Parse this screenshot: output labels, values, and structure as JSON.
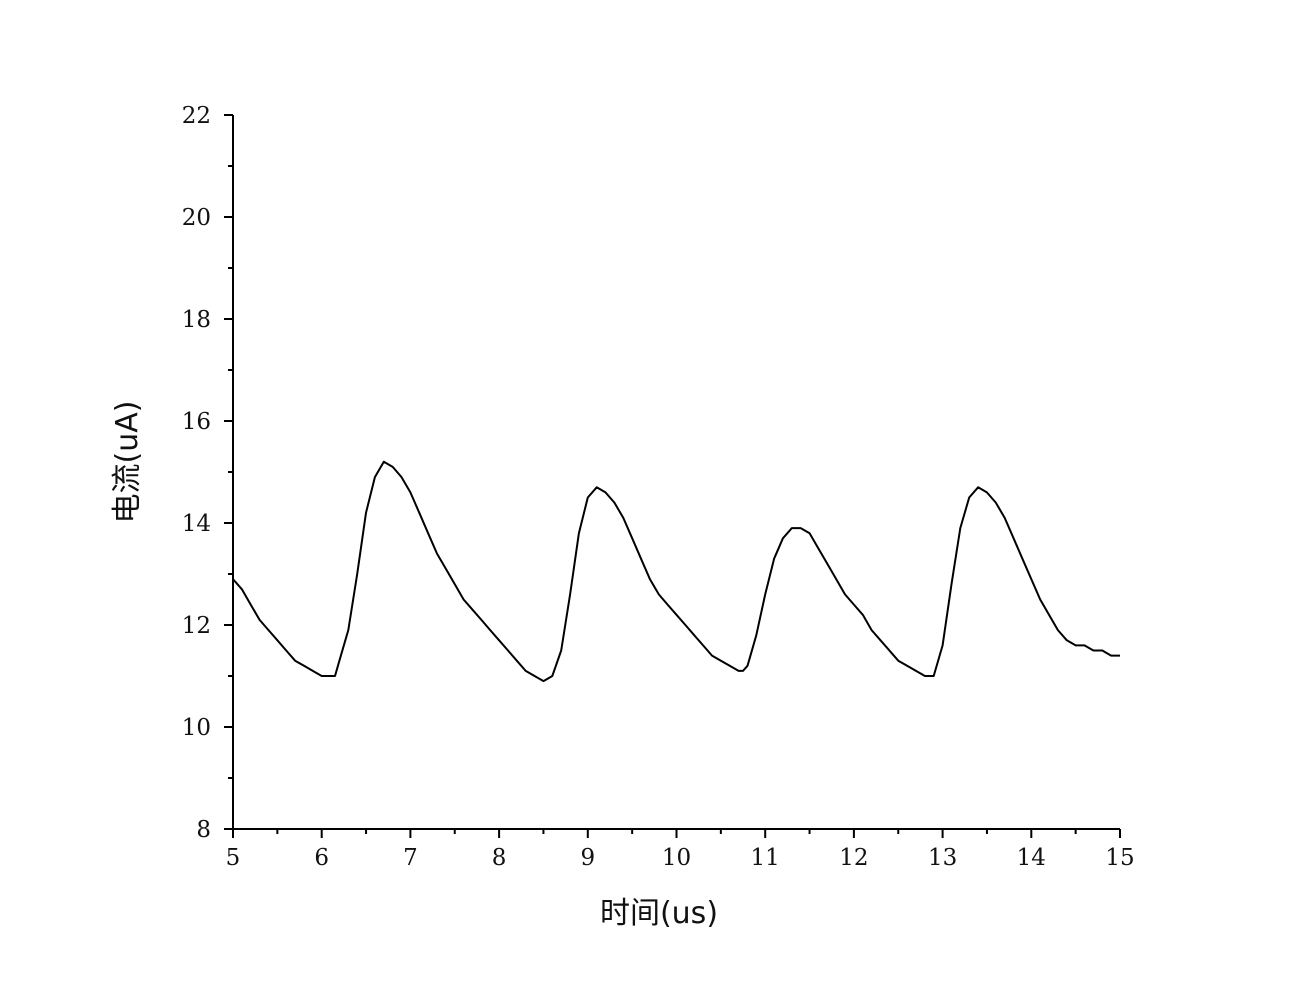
{
  "chart_data": {
    "type": "line",
    "xlabel": "时间(us)",
    "ylabel": "电流(uA)",
    "xlim": [
      5,
      15
    ],
    "ylim": [
      8,
      22
    ],
    "x_ticks": [
      5,
      6,
      7,
      8,
      9,
      10,
      11,
      12,
      13,
      14,
      15
    ],
    "x_tick_labels": [
      "5",
      "6",
      "7",
      "8",
      "9",
      "10",
      "11",
      "12",
      "13",
      "14",
      "15"
    ],
    "y_ticks": [
      8,
      10,
      12,
      14,
      16,
      18,
      20,
      22
    ],
    "y_tick_labels": [
      "8",
      "10",
      "12",
      "14",
      "16",
      "18",
      "20",
      "22"
    ],
    "grid": false,
    "line_color": "#000000",
    "series": [
      {
        "x": [
          5.0,
          5.1,
          5.2,
          5.3,
          5.4,
          5.5,
          5.6,
          5.7,
          5.8,
          5.9,
          6.0,
          6.1,
          6.15,
          6.2,
          6.3,
          6.4,
          6.5,
          6.6,
          6.7,
          6.8,
          6.9,
          7.0,
          7.1,
          7.2,
          7.3,
          7.4,
          7.5,
          7.6,
          7.7,
          7.8,
          7.9,
          8.0,
          8.1,
          8.2,
          8.3,
          8.4,
          8.5,
          8.6,
          8.7,
          8.8,
          8.9,
          9.0,
          9.1,
          9.2,
          9.3,
          9.4,
          9.5,
          9.6,
          9.7,
          9.8,
          9.9,
          10.0,
          10.1,
          10.2,
          10.3,
          10.4,
          10.5,
          10.6,
          10.7,
          10.75,
          10.8,
          10.9,
          11.0,
          11.1,
          11.2,
          11.3,
          11.4,
          11.5,
          11.6,
          11.7,
          11.8,
          11.9,
          12.0,
          12.1,
          12.2,
          12.3,
          12.4,
          12.5,
          12.6,
          12.7,
          12.8,
          12.9,
          13.0,
          13.1,
          13.2,
          13.3,
          13.4,
          13.5,
          13.6,
          13.7,
          13.8,
          13.9,
          14.0,
          14.1,
          14.2,
          14.3,
          14.4,
          14.5,
          14.6,
          14.7,
          14.8,
          14.9,
          15.0
        ],
        "values": [
          12.9,
          12.7,
          12.4,
          12.1,
          11.9,
          11.7,
          11.5,
          11.3,
          11.2,
          11.1,
          11.0,
          11.0,
          11.0,
          11.3,
          11.9,
          13.0,
          14.2,
          14.9,
          15.2,
          15.1,
          14.9,
          14.6,
          14.2,
          13.8,
          13.4,
          13.1,
          12.8,
          12.5,
          12.3,
          12.1,
          11.9,
          11.7,
          11.5,
          11.3,
          11.1,
          11.0,
          10.9,
          11.0,
          11.5,
          12.6,
          13.8,
          14.5,
          14.7,
          14.6,
          14.4,
          14.1,
          13.7,
          13.3,
          12.9,
          12.6,
          12.4,
          12.2,
          12.0,
          11.8,
          11.6,
          11.4,
          11.3,
          11.2,
          11.1,
          11.1,
          11.2,
          11.8,
          12.6,
          13.3,
          13.7,
          13.9,
          13.9,
          13.8,
          13.5,
          13.2,
          12.9,
          12.6,
          12.4,
          12.2,
          11.9,
          11.7,
          11.5,
          11.3,
          11.2,
          11.1,
          11.0,
          11.0,
          11.6,
          12.8,
          13.9,
          14.5,
          14.7,
          14.6,
          14.4,
          14.1,
          13.7,
          13.3,
          12.9,
          12.5,
          12.2,
          11.9,
          11.7,
          11.6,
          11.6,
          11.5,
          11.5,
          11.4,
          11.4
        ]
      }
    ]
  }
}
